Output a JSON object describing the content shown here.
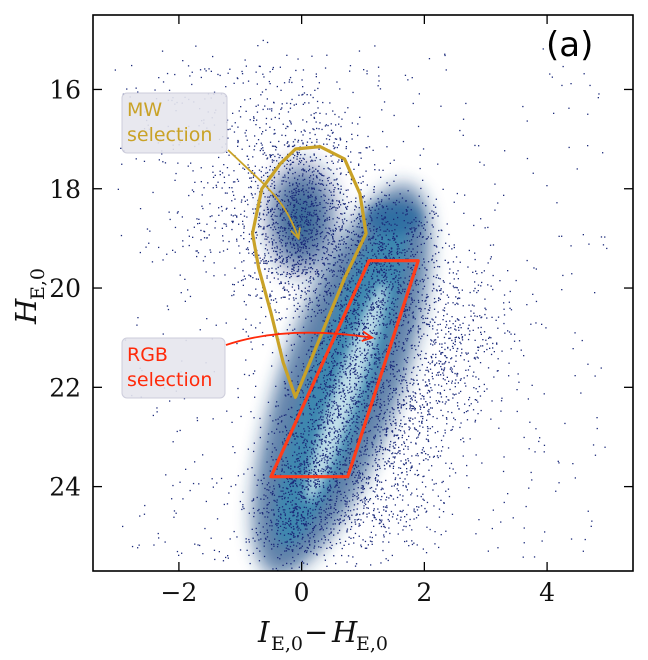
{
  "chart_data": {
    "type": "scatter",
    "title": "",
    "panel_label": "(a)",
    "xlabel": "I_E,0 − H_E,0",
    "ylabel": "H_E,0",
    "xlim": [
      -3.4,
      5.4
    ],
    "ylim": [
      25.7,
      14.5
    ],
    "y_inverted": true,
    "xticks": [
      -2,
      0,
      2,
      4
    ],
    "yticks": [
      16,
      18,
      20,
      22,
      24
    ],
    "xtick_labels": [
      "−2",
      "0",
      "2",
      "4"
    ],
    "ytick_labels": [
      "16",
      "18",
      "20",
      "22",
      "24"
    ],
    "colormap": "density (dark blue → light cyan)",
    "point_color": "#1b2a7a",
    "density_colors": [
      "#1f5d8c",
      "#3a88b0",
      "#86c1d8",
      "#d8eef5"
    ],
    "series": [
      {
        "name": "Foreground MW stars (blob)",
        "center": [
          0.0,
          18.6
        ],
        "spread": [
          0.45,
          0.9
        ]
      },
      {
        "name": "Red giant branch (diagonal sequence)",
        "from": [
          -0.3,
          25.2
        ],
        "to": [
          1.6,
          18.5
        ]
      },
      {
        "name": "Sparse field / background",
        "x_range": [
          -3.0,
          5.0
        ],
        "y_range": [
          15.0,
          25.5
        ]
      }
    ],
    "regions": [
      {
        "name": "MW selection",
        "color": "#c9a227",
        "polygon": [
          [
            -0.1,
            22.2
          ],
          [
            0.7,
            19.8
          ],
          [
            1.05,
            18.9
          ],
          [
            0.95,
            18.1
          ],
          [
            0.7,
            17.4
          ],
          [
            0.3,
            17.15
          ],
          [
            -0.1,
            17.2
          ],
          [
            -0.35,
            17.5
          ],
          [
            -0.65,
            18.0
          ],
          [
            -0.8,
            18.9
          ],
          [
            -0.7,
            19.6
          ],
          [
            -0.5,
            20.5
          ],
          [
            -0.3,
            21.5
          ],
          [
            -0.1,
            22.2
          ]
        ]
      },
      {
        "name": "RGB selection",
        "color": "#ff3d1a",
        "polygon": [
          [
            -0.5,
            23.8
          ],
          [
            0.75,
            23.8
          ],
          [
            1.9,
            19.45
          ],
          [
            1.1,
            19.45
          ],
          [
            -0.5,
            23.8
          ]
        ]
      }
    ],
    "annotations": [
      {
        "text_lines": [
          "MW",
          "selection"
        ],
        "color": "#c9a227",
        "box_color": "#e6e6ee",
        "arrow_to": [
          -0.05,
          19.0
        ]
      },
      {
        "text_lines": [
          "RGB",
          "selection"
        ],
        "color": "#ff2a0a",
        "box_color": "#e6e6ee",
        "arrow_to": [
          1.15,
          21.0
        ]
      }
    ]
  }
}
